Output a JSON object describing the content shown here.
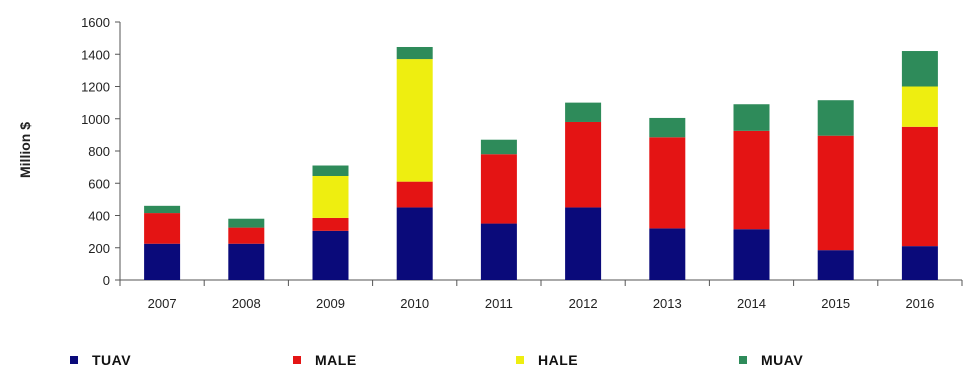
{
  "chart_data": {
    "type": "bar",
    "stacked": true,
    "categories": [
      "2007",
      "2008",
      "2009",
      "2010",
      "2011",
      "2012",
      "2013",
      "2014",
      "2015",
      "2016"
    ],
    "series": [
      {
        "name": "TUAV",
        "color": "#0a0a7a",
        "values": [
          225,
          225,
          305,
          450,
          350,
          450,
          320,
          315,
          185,
          210
        ]
      },
      {
        "name": "MALE",
        "color": "#e41414",
        "values": [
          190,
          100,
          80,
          160,
          430,
          530,
          565,
          610,
          710,
          740
        ]
      },
      {
        "name": "HALE",
        "color": "#eeee10",
        "values": [
          0,
          0,
          260,
          760,
          0,
          0,
          0,
          0,
          0,
          250
        ]
      },
      {
        "name": "MUAV",
        "color": "#2e8b5a",
        "values": [
          45,
          55,
          65,
          75,
          90,
          120,
          120,
          165,
          220,
          220
        ]
      }
    ],
    "title": "",
    "xlabel": "",
    "ylabel": "Million $",
    "ylim": [
      0,
      1600
    ],
    "yticks": [
      "0",
      "200",
      "400",
      "600",
      "800",
      "1000",
      "1200",
      "1400",
      "1600"
    ],
    "grid": false,
    "legend_position": "bottom"
  }
}
